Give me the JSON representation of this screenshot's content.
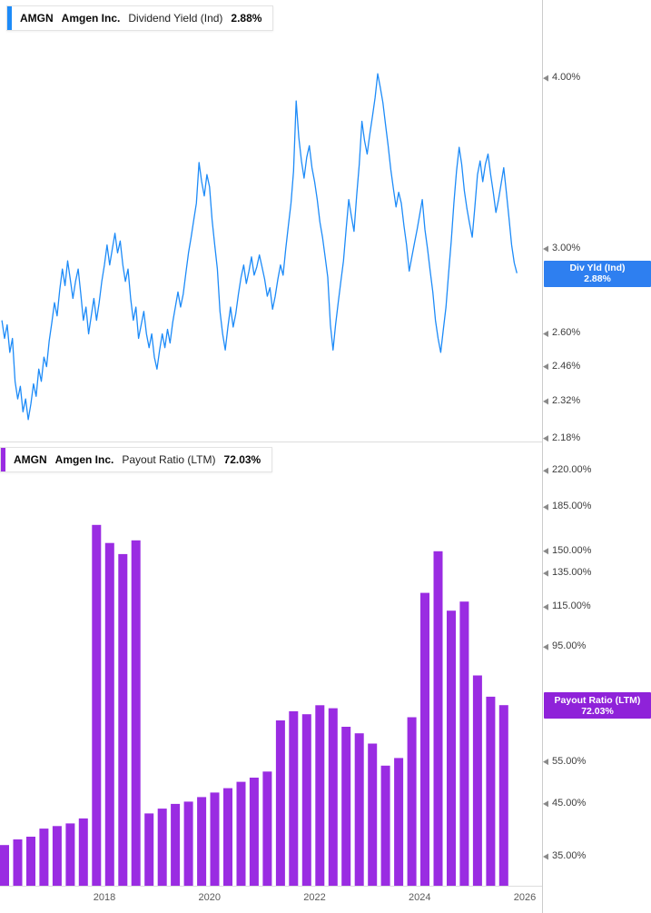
{
  "colors": {
    "line_blue": "#1d8bf8",
    "flag_blue": "#2e7ff0",
    "bar_purple": "#9a2ce2",
    "flag_purple": "#8f22d9",
    "axis_line": "#cccccc",
    "divider": "#dddddd",
    "tick_marker": "#8a8a8a"
  },
  "top_panel": {
    "legend": {
      "ticker": "AMGN",
      "company": "Amgen Inc.",
      "metric": "Dividend Yield (Ind)",
      "value": "2.88%"
    },
    "flag": {
      "line1": "Div Yld (Ind)",
      "line2": "2.88%"
    },
    "yticks": [
      {
        "label": "4.00%",
        "value": 4.0
      },
      {
        "label": "3.00%",
        "value": 3.0
      },
      {
        "label": "2.60%",
        "value": 2.6
      },
      {
        "label": "2.46%",
        "value": 2.46
      },
      {
        "label": "2.32%",
        "value": 2.32
      },
      {
        "label": "2.18%",
        "value": 2.18
      }
    ]
  },
  "bottom_panel": {
    "legend": {
      "ticker": "AMGN",
      "company": "Amgen Inc.",
      "metric": "Payout Ratio (LTM)",
      "value": "72.03%"
    },
    "flag": {
      "line1": "Payout Ratio (LTM)",
      "line2": "72.03%"
    },
    "yticks": [
      {
        "label": "220.00%",
        "value": 220
      },
      {
        "label": "185.00%",
        "value": 185
      },
      {
        "label": "150.00%",
        "value": 150
      },
      {
        "label": "135.00%",
        "value": 135
      },
      {
        "label": "115.00%",
        "value": 115
      },
      {
        "label": "95.00%",
        "value": 95
      },
      {
        "label": "55.00%",
        "value": 55
      },
      {
        "label": "45.00%",
        "value": 45
      },
      {
        "label": "35.00%",
        "value": 35
      }
    ]
  },
  "x_axis": {
    "labels": [
      {
        "label": "2018",
        "year": 2018
      },
      {
        "label": "2020",
        "year": 2020
      },
      {
        "label": "2022",
        "year": 2022
      },
      {
        "label": "2024",
        "year": 2024
      },
      {
        "label": "2026",
        "year": 2026
      }
    ]
  },
  "chart_data": [
    {
      "type": "line",
      "ticker": "AMGN",
      "company": "Amgen Inc.",
      "title": "Dividend Yield (Ind)",
      "unit": "%",
      "scale": "log",
      "legend_position": "top-left",
      "grid": false,
      "current_value": 2.88,
      "x_range": [
        2016.05,
        2025.85
      ],
      "x_start": 2016.05,
      "x_step": 0.05,
      "yticks": [
        4.0,
        3.0,
        2.6,
        2.46,
        2.32,
        2.18
      ],
      "values": [
        2.66,
        2.58,
        2.64,
        2.52,
        2.58,
        2.4,
        2.33,
        2.38,
        2.28,
        2.33,
        2.25,
        2.31,
        2.39,
        2.34,
        2.45,
        2.4,
        2.5,
        2.46,
        2.57,
        2.65,
        2.74,
        2.68,
        2.8,
        2.9,
        2.82,
        2.94,
        2.85,
        2.76,
        2.84,
        2.9,
        2.78,
        2.66,
        2.72,
        2.6,
        2.68,
        2.76,
        2.66,
        2.74,
        2.84,
        2.92,
        3.02,
        2.92,
        3.0,
        3.08,
        2.98,
        3.04,
        2.92,
        2.84,
        2.9,
        2.76,
        2.66,
        2.72,
        2.58,
        2.64,
        2.7,
        2.6,
        2.54,
        2.6,
        2.5,
        2.45,
        2.53,
        2.6,
        2.54,
        2.62,
        2.56,
        2.65,
        2.72,
        2.79,
        2.72,
        2.78,
        2.88,
        2.98,
        3.06,
        3.15,
        3.24,
        3.47,
        3.36,
        3.28,
        3.4,
        3.33,
        3.15,
        3.02,
        2.9,
        2.7,
        2.6,
        2.53,
        2.63,
        2.72,
        2.63,
        2.69,
        2.78,
        2.86,
        2.92,
        2.83,
        2.89,
        2.96,
        2.87,
        2.91,
        2.97,
        2.91,
        2.85,
        2.77,
        2.81,
        2.71,
        2.77,
        2.85,
        2.92,
        2.87,
        3.0,
        3.12,
        3.24,
        3.42,
        3.85,
        3.62,
        3.48,
        3.38,
        3.5,
        3.57,
        3.44,
        3.36,
        3.26,
        3.14,
        3.06,
        2.96,
        2.86,
        2.64,
        2.53,
        2.64,
        2.74,
        2.84,
        2.94,
        3.1,
        3.26,
        3.17,
        3.09,
        3.28,
        3.46,
        3.72,
        3.6,
        3.52,
        3.64,
        3.75,
        3.87,
        4.03,
        3.94,
        3.84,
        3.7,
        3.57,
        3.43,
        3.32,
        3.22,
        3.3,
        3.24,
        3.12,
        3.02,
        2.89,
        2.96,
        3.03,
        3.1,
        3.18,
        3.26,
        3.1,
        3.0,
        2.89,
        2.79,
        2.66,
        2.58,
        2.52,
        2.62,
        2.72,
        2.88,
        3.04,
        3.24,
        3.42,
        3.56,
        3.46,
        3.31,
        3.21,
        3.13,
        3.06,
        3.22,
        3.4,
        3.48,
        3.36,
        3.46,
        3.52,
        3.4,
        3.3,
        3.19,
        3.26,
        3.35,
        3.44,
        3.3,
        3.16,
        3.02,
        2.93,
        2.88
      ]
    },
    {
      "type": "bar",
      "ticker": "AMGN",
      "company": "Amgen Inc.",
      "title": "Payout Ratio (LTM)",
      "unit": "%",
      "scale": "log",
      "legend_position": "top-left",
      "grid": false,
      "current_value": 72.03,
      "x_range": [
        2016.1,
        2025.6
      ],
      "x_start": 2016.1,
      "x_step": 0.25,
      "yticks": [
        220,
        185,
        150,
        135,
        115,
        95,
        55,
        45,
        35
      ],
      "values": [
        37,
        38,
        38.5,
        40,
        40.5,
        41,
        42,
        170,
        156,
        148,
        158,
        43,
        44,
        45,
        45.5,
        46.5,
        47.5,
        48.5,
        50,
        51,
        52.5,
        67,
        70,
        69,
        72,
        71,
        65,
        63,
        60,
        54,
        56,
        68,
        123,
        150,
        113,
        118,
        83,
        75,
        72.03
      ]
    }
  ]
}
